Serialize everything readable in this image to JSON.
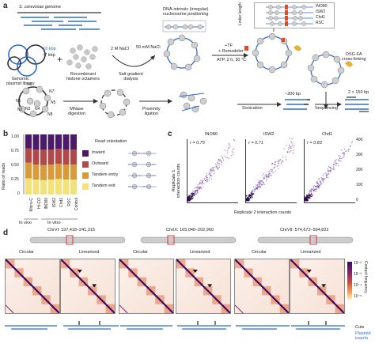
{
  "panel_a": {
    "letter": "a",
    "genome_label": "S. cerevisiae genome",
    "size_10": "~10 kbp",
    "size_7": "~7 kbp",
    "plasmid_label": "Genomic\nplasmid library",
    "plus": "+",
    "histone_label": "Recombinant\nhistone octamers",
    "nacl_high": "2 M NaCl",
    "nacl_low": "50 mM NaCl",
    "dialysis_label": "Salt gradient\ndialysis",
    "positioning_label": "DNA-intrinsic (irregular)\nnucleosome positioning",
    "tf_label": "+TF",
    "remodeler_label": "+ Remodeler",
    "conditions_label": "ATP, 2 h, 30 °C",
    "linker_label": "Linker length",
    "remodelers": [
      "INO80",
      "ISW2",
      "Chd1",
      "RSC"
    ],
    "crosslink_label": "DSG-FA\ncross-linking",
    "nuc_labels": [
      "N6",
      "N7",
      "N5",
      "N1",
      "N3",
      "N4",
      "N2",
      "N8"
    ],
    "mnase_label": "MNase\ndigestion",
    "ligation_label": "Proximity\nligation",
    "sonication_label": "Sonication",
    "bp200_label": "~200 bp",
    "sequencing_label": "Sequencing",
    "reads_label": "2 × 150 bp"
  },
  "panel_b": {
    "letter": "b",
    "ylabel": "Ratio of reads",
    "ticks": [
      "1.00",
      "0.75",
      "0.50",
      "0.25",
      "0"
    ],
    "legend_title": "Read orientation",
    "legend": [
      "Inward",
      "Outward",
      "Tandem entry",
      "Tandem exit"
    ],
    "group_in_vivo": "In vivo",
    "group_in_vitro": "In vitro",
    "colors": {
      "inward": "#4b1a6b",
      "outward": "#b04a4a",
      "tandem_entry": "#d89a3a",
      "tandem_exit": "#f2e27a"
    }
  },
  "chart_data": {
    "type": "bar",
    "title": "",
    "ylabel": "Ratio of reads",
    "ylim": [
      0,
      1
    ],
    "categories": [
      "Micro-C",
      "Hi-CO",
      "INO80",
      "ISW2",
      "Chd1",
      "RSC",
      "Control"
    ],
    "series": [
      {
        "name": "Tandem exit",
        "values": [
          0.27,
          0.25,
          0.24,
          0.25,
          0.26,
          0.25,
          0.25
        ]
      },
      {
        "name": "Tandem entry",
        "values": [
          0.26,
          0.25,
          0.25,
          0.25,
          0.25,
          0.25,
          0.25
        ]
      },
      {
        "name": "Outward",
        "values": [
          0.24,
          0.25,
          0.26,
          0.25,
          0.25,
          0.25,
          0.25
        ]
      },
      {
        "name": "Inward",
        "values": [
          0.23,
          0.25,
          0.25,
          0.25,
          0.24,
          0.25,
          0.25
        ]
      }
    ]
  },
  "panel_c": {
    "letter": "c",
    "ylabel": "Replicate 1\ninteraction counts",
    "xlabel": "Replicate 2 interaction counts",
    "plots": [
      {
        "title": "INO80",
        "r": "r = 0.75"
      },
      {
        "title": "ISW2",
        "r": "r = 0.71"
      },
      {
        "title": "Chd1",
        "r": "r = 0.83"
      }
    ],
    "right_ticks": [
      "400",
      "300",
      "200",
      "100",
      "0"
    ]
  },
  "panel_d": {
    "letter": "d",
    "regions": [
      "ChrVI: 197,418–241,315",
      "ChrIX: 165,040–202,960",
      "ChrVII: 574,672–594,822"
    ],
    "circular": "Circular",
    "linearized": "Linearized",
    "colorbar_label": "Contact frequency",
    "colorbar_ticks": [
      "10⁻²",
      "10⁻³",
      "10⁻⁴",
      "10⁻⁵"
    ],
    "cuts_label": "Cuts",
    "plasmid_inserts_label": "Plasmid\ninserts"
  }
}
